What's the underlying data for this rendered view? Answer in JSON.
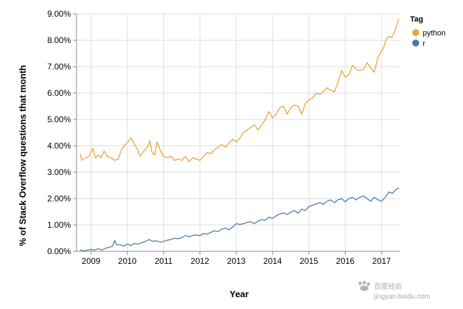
{
  "chart_data": {
    "type": "line",
    "xlabel": "Year",
    "ylabel": "% of Stack Overflow questions that month",
    "xlim": [
      2008.6,
      2017.5
    ],
    "ylim": [
      0,
      9
    ],
    "x_ticks": [
      2009,
      2010,
      2011,
      2012,
      2013,
      2014,
      2015,
      2016,
      2017
    ],
    "y_ticks": [
      0,
      1,
      2,
      3,
      4,
      5,
      6,
      7,
      8,
      9
    ],
    "y_tick_labels": [
      "0.00%",
      "1.00%",
      "2.00%",
      "3.00%",
      "4.00%",
      "5.00%",
      "6.00%",
      "7.00%",
      "8.00%",
      "9.00%"
    ],
    "grid": true,
    "legend": {
      "title": "Tag",
      "position": "top-right"
    },
    "series": [
      {
        "name": "python",
        "color": "#f0a03c",
        "points": [
          [
            2008.7,
            3.7
          ],
          [
            2008.75,
            3.45
          ],
          [
            2008.85,
            3.55
          ],
          [
            2008.95,
            3.6
          ],
          [
            2009.05,
            3.9
          ],
          [
            2009.12,
            3.55
          ],
          [
            2009.2,
            3.65
          ],
          [
            2009.28,
            3.55
          ],
          [
            2009.36,
            3.8
          ],
          [
            2009.45,
            3.6
          ],
          [
            2009.55,
            3.55
          ],
          [
            2009.65,
            3.45
          ],
          [
            2009.75,
            3.5
          ],
          [
            2009.85,
            3.9
          ],
          [
            2009.95,
            4.05
          ],
          [
            2010.05,
            4.2
          ],
          [
            2010.1,
            4.3
          ],
          [
            2010.2,
            4.05
          ],
          [
            2010.28,
            3.85
          ],
          [
            2010.35,
            3.6
          ],
          [
            2010.45,
            3.8
          ],
          [
            2010.55,
            3.95
          ],
          [
            2010.62,
            4.2
          ],
          [
            2010.68,
            3.75
          ],
          [
            2010.75,
            3.65
          ],
          [
            2010.82,
            4.15
          ],
          [
            2010.9,
            3.85
          ],
          [
            2011.0,
            3.6
          ],
          [
            2011.1,
            3.55
          ],
          [
            2011.2,
            3.6
          ],
          [
            2011.3,
            3.45
          ],
          [
            2011.4,
            3.5
          ],
          [
            2011.5,
            3.45
          ],
          [
            2011.6,
            3.6
          ],
          [
            2011.7,
            3.4
          ],
          [
            2011.8,
            3.55
          ],
          [
            2011.9,
            3.5
          ],
          [
            2012.0,
            3.45
          ],
          [
            2012.1,
            3.6
          ],
          [
            2012.2,
            3.75
          ],
          [
            2012.3,
            3.7
          ],
          [
            2012.4,
            3.85
          ],
          [
            2012.5,
            3.95
          ],
          [
            2012.6,
            4.05
          ],
          [
            2012.7,
            3.95
          ],
          [
            2012.8,
            4.1
          ],
          [
            2012.9,
            4.25
          ],
          [
            2013.0,
            4.15
          ],
          [
            2013.1,
            4.3
          ],
          [
            2013.2,
            4.5
          ],
          [
            2013.3,
            4.6
          ],
          [
            2013.4,
            4.7
          ],
          [
            2013.5,
            4.8
          ],
          [
            2013.6,
            4.6
          ],
          [
            2013.7,
            4.8
          ],
          [
            2013.8,
            5.0
          ],
          [
            2013.9,
            5.3
          ],
          [
            2014.0,
            5.05
          ],
          [
            2014.1,
            5.2
          ],
          [
            2014.2,
            5.45
          ],
          [
            2014.3,
            5.5
          ],
          [
            2014.4,
            5.2
          ],
          [
            2014.5,
            5.45
          ],
          [
            2014.6,
            5.55
          ],
          [
            2014.7,
            5.5
          ],
          [
            2014.8,
            5.2
          ],
          [
            2014.9,
            5.6
          ],
          [
            2015.0,
            5.75
          ],
          [
            2015.1,
            5.8
          ],
          [
            2015.2,
            6.0
          ],
          [
            2015.3,
            5.95
          ],
          [
            2015.4,
            6.05
          ],
          [
            2015.5,
            6.2
          ],
          [
            2015.6,
            6.1
          ],
          [
            2015.7,
            6.05
          ],
          [
            2015.8,
            6.4
          ],
          [
            2015.9,
            6.85
          ],
          [
            2016.0,
            6.6
          ],
          [
            2016.1,
            6.7
          ],
          [
            2016.2,
            7.05
          ],
          [
            2016.3,
            6.9
          ],
          [
            2016.4,
            6.85
          ],
          [
            2016.5,
            6.9
          ],
          [
            2016.6,
            7.15
          ],
          [
            2016.7,
            6.95
          ],
          [
            2016.8,
            6.8
          ],
          [
            2016.9,
            7.35
          ],
          [
            2017.0,
            7.6
          ],
          [
            2017.05,
            7.7
          ],
          [
            2017.12,
            8.0
          ],
          [
            2017.2,
            8.15
          ],
          [
            2017.28,
            8.1
          ],
          [
            2017.35,
            8.3
          ],
          [
            2017.42,
            8.6
          ],
          [
            2017.48,
            8.8
          ]
        ]
      },
      {
        "name": "r",
        "color": "#4e79a7",
        "points": [
          [
            2008.7,
            0.05
          ],
          [
            2008.8,
            0.02
          ],
          [
            2008.9,
            0.05
          ],
          [
            2009.0,
            0.07
          ],
          [
            2009.1,
            0.05
          ],
          [
            2009.2,
            0.1
          ],
          [
            2009.3,
            0.05
          ],
          [
            2009.4,
            0.12
          ],
          [
            2009.5,
            0.15
          ],
          [
            2009.6,
            0.2
          ],
          [
            2009.65,
            0.42
          ],
          [
            2009.7,
            0.25
          ],
          [
            2009.8,
            0.25
          ],
          [
            2009.9,
            0.2
          ],
          [
            2010.0,
            0.28
          ],
          [
            2010.1,
            0.22
          ],
          [
            2010.2,
            0.3
          ],
          [
            2010.3,
            0.28
          ],
          [
            2010.4,
            0.33
          ],
          [
            2010.5,
            0.38
          ],
          [
            2010.6,
            0.45
          ],
          [
            2010.7,
            0.38
          ],
          [
            2010.8,
            0.4
          ],
          [
            2010.9,
            0.35
          ],
          [
            2011.0,
            0.38
          ],
          [
            2011.1,
            0.42
          ],
          [
            2011.2,
            0.45
          ],
          [
            2011.3,
            0.5
          ],
          [
            2011.4,
            0.48
          ],
          [
            2011.5,
            0.52
          ],
          [
            2011.6,
            0.6
          ],
          [
            2011.7,
            0.55
          ],
          [
            2011.8,
            0.6
          ],
          [
            2011.9,
            0.62
          ],
          [
            2012.0,
            0.6
          ],
          [
            2012.1,
            0.68
          ],
          [
            2012.2,
            0.65
          ],
          [
            2012.3,
            0.72
          ],
          [
            2012.4,
            0.78
          ],
          [
            2012.5,
            0.75
          ],
          [
            2012.6,
            0.85
          ],
          [
            2012.7,
            0.88
          ],
          [
            2012.8,
            0.82
          ],
          [
            2012.9,
            0.92
          ],
          [
            2013.0,
            1.05
          ],
          [
            2013.1,
            1.02
          ],
          [
            2013.2,
            1.05
          ],
          [
            2013.3,
            1.1
          ],
          [
            2013.4,
            1.12
          ],
          [
            2013.5,
            1.05
          ],
          [
            2013.6,
            1.15
          ],
          [
            2013.7,
            1.2
          ],
          [
            2013.8,
            1.18
          ],
          [
            2013.9,
            1.3
          ],
          [
            2014.0,
            1.25
          ],
          [
            2014.1,
            1.35
          ],
          [
            2014.2,
            1.42
          ],
          [
            2014.3,
            1.45
          ],
          [
            2014.4,
            1.4
          ],
          [
            2014.5,
            1.48
          ],
          [
            2014.6,
            1.55
          ],
          [
            2014.7,
            1.45
          ],
          [
            2014.8,
            1.6
          ],
          [
            2014.9,
            1.55
          ],
          [
            2015.0,
            1.7
          ],
          [
            2015.1,
            1.75
          ],
          [
            2015.2,
            1.8
          ],
          [
            2015.3,
            1.85
          ],
          [
            2015.4,
            1.78
          ],
          [
            2015.5,
            1.9
          ],
          [
            2015.6,
            1.95
          ],
          [
            2015.7,
            1.85
          ],
          [
            2015.8,
            1.95
          ],
          [
            2015.9,
            2.0
          ],
          [
            2016.0,
            1.88
          ],
          [
            2016.1,
            2.0
          ],
          [
            2016.2,
            2.05
          ],
          [
            2016.3,
            1.95
          ],
          [
            2016.4,
            2.05
          ],
          [
            2016.5,
            2.1
          ],
          [
            2016.6,
            2.0
          ],
          [
            2016.7,
            1.9
          ],
          [
            2016.8,
            2.05
          ],
          [
            2016.9,
            1.95
          ],
          [
            2017.0,
            1.9
          ],
          [
            2017.1,
            2.05
          ],
          [
            2017.2,
            2.25
          ],
          [
            2017.3,
            2.2
          ],
          [
            2017.4,
            2.35
          ],
          [
            2017.48,
            2.4
          ]
        ]
      }
    ]
  },
  "watermark": {
    "line1": "百度经验",
    "line2": "jingyan.baidu.com"
  }
}
